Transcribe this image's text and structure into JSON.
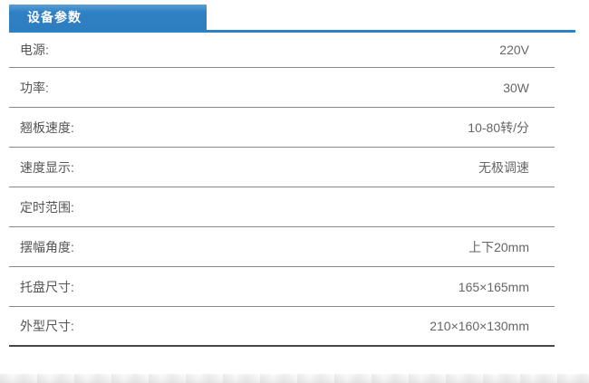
{
  "header": {
    "title": "设备参数"
  },
  "colors": {
    "accent_blue": "#2e81c4",
    "separator_gray": "#8a8a8a",
    "bottom_rule_dark": "#474747",
    "label_text": "#555555",
    "value_text": "#666666"
  },
  "table": {
    "rows": [
      {
        "label": "电源:",
        "value": "220V"
      },
      {
        "label": "功率:",
        "value": "30W"
      },
      {
        "label": "翘板速度:",
        "value": "10-80转/分"
      },
      {
        "label": "速度显示:",
        "value": "无极调速"
      },
      {
        "label": "定时范围:",
        "value": ""
      },
      {
        "label": "摆幅角度:",
        "value": "上下20mm"
      },
      {
        "label": "托盘尺寸:",
        "value": "165×165mm"
      },
      {
        "label": "外型尺寸:",
        "value": "210×160×130mm"
      }
    ]
  }
}
